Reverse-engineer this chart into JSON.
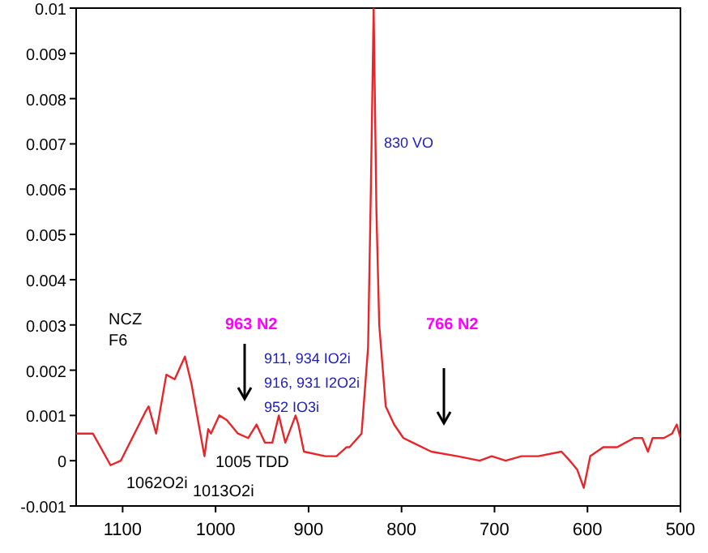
{
  "chart_data": {
    "type": "line",
    "xlim": [
      1150,
      500
    ],
    "xticks": [
      1100,
      1000,
      900,
      800,
      700,
      600,
      500
    ],
    "ylim": [
      -0.001,
      0.01
    ],
    "yticks": [
      -0.001,
      0,
      0.001,
      0.002,
      0.003,
      0.004,
      0.005,
      0.006,
      0.007,
      0.008,
      0.009,
      0.01
    ],
    "grid": false,
    "marker": "none",
    "line_style": "solid",
    "series": [
      {
        "color": "#e8262a",
        "x": [
          1150,
          1132,
          1113,
          1102,
          1075,
          1072,
          1064,
          1053,
          1044,
          1033,
          1026,
          1019,
          1012,
          1008,
          1005,
          996,
          988,
          976,
          965,
          956,
          947,
          939,
          932,
          925,
          914,
          911,
          905,
          882,
          870,
          859,
          856,
          843,
          836,
          833,
          830,
          827,
          824,
          817,
          808,
          798,
          768,
          740,
          716,
          703,
          688,
          671,
          653,
          628,
          619,
          611,
          604,
          597,
          583,
          568,
          550,
          541,
          535,
          530,
          518,
          509,
          504,
          500
        ],
        "values": [
          0.0006,
          0.0006,
          -0.0001,
          0,
          0.0011,
          0.0012,
          0.0006,
          0.0019,
          0.0018,
          0.0023,
          0.0017,
          0.0009,
          0.0001,
          0.0007,
          0.0006,
          0.001,
          0.0009,
          0.0006,
          0.0005,
          0.0008,
          0.0004,
          0.0004,
          0.001,
          0.0004,
          0.001,
          0.0008,
          0.0002,
          0.0001,
          0.0001,
          0.0003,
          0.0003,
          0.0006,
          0.0025,
          0.006,
          0.01,
          0.0055,
          0.003,
          0.0012,
          0.0008,
          0.0005,
          0.0002,
          0.0001,
          0,
          0.0001,
          0,
          0.0001,
          0.0001,
          0.0002,
          0,
          -0.0002,
          -0.0006,
          0.0001,
          0.0003,
          0.0003,
          0.0005,
          0.0005,
          0.0002,
          0.0005,
          0.0005,
          0.0006,
          0.0008,
          0.0005
        ]
      }
    ],
    "annotations": [
      "NCZ",
      "F6",
      "963 N2",
      "766 N2",
      "911, 934 IO2i",
      "916, 931 I2O2i",
      "952 IO3i",
      "830 VO",
      "1005 TDD",
      "1062O2i",
      "1013O2i"
    ]
  }
}
